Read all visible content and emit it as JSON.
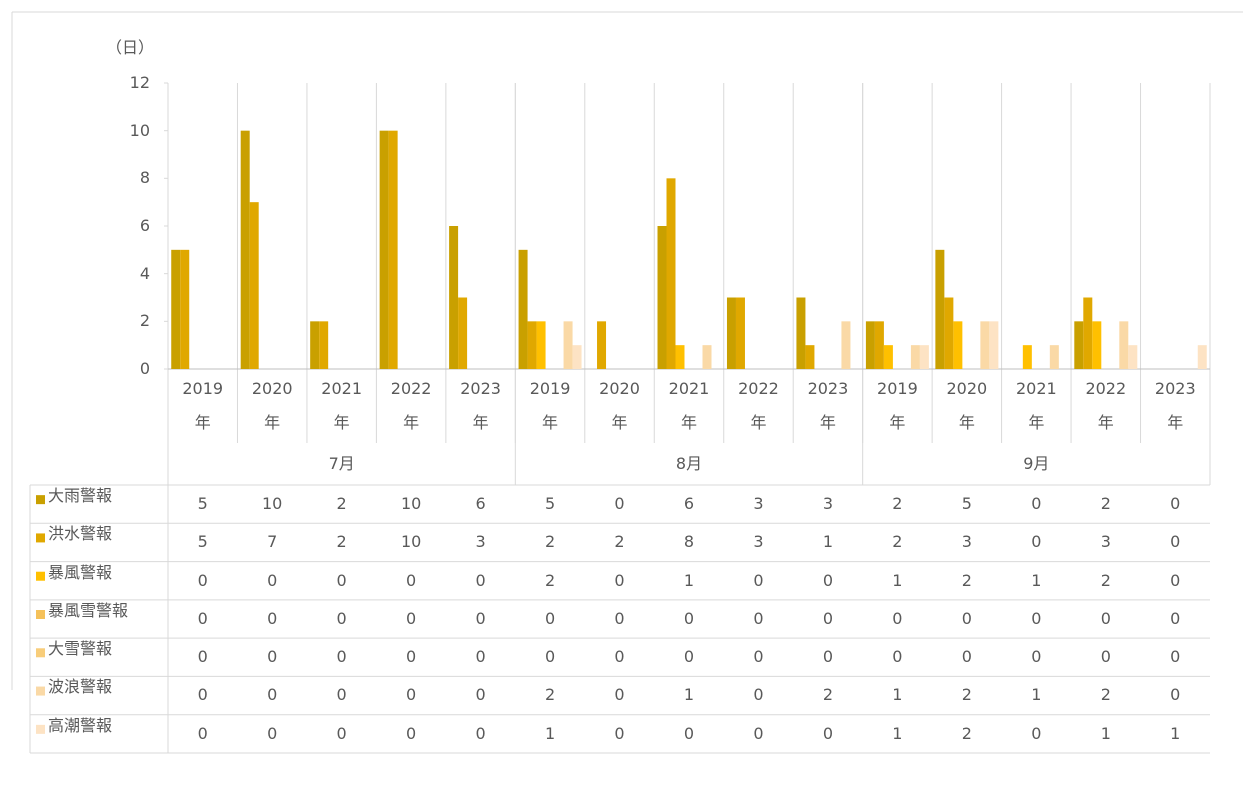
{
  "chart_data": {
    "type": "bar",
    "y_label": "（日）",
    "categories": [
      "2019年",
      "2020年",
      "2021年",
      "2022年",
      "2023年",
      "2019年",
      "2020年",
      "2021年",
      "2022年",
      "2023年",
      "2019年",
      "2020年",
      "2021年",
      "2022年",
      "2023年"
    ],
    "category_groups": [
      "7月",
      "8月",
      "9月"
    ],
    "ylim": [
      0,
      12
    ],
    "yticks": [
      0,
      2,
      4,
      6,
      8,
      10,
      12
    ],
    "series": [
      {
        "name": "大雨警報",
        "color": "#c9a000",
        "values": [
          5,
          10,
          2,
          10,
          6,
          5,
          0,
          6,
          3,
          3,
          2,
          5,
          0,
          2,
          0
        ]
      },
      {
        "name": "洪水警報",
        "color": "#e0a800",
        "values": [
          5,
          7,
          2,
          10,
          3,
          2,
          2,
          8,
          3,
          1,
          2,
          3,
          0,
          3,
          0
        ]
      },
      {
        "name": "暴風警報",
        "color": "#ffc000",
        "values": [
          0,
          0,
          0,
          0,
          0,
          2,
          0,
          1,
          0,
          0,
          1,
          2,
          1,
          2,
          0
        ]
      },
      {
        "name": "暴風雪警報",
        "color": "#f5c15a",
        "values": [
          0,
          0,
          0,
          0,
          0,
          0,
          0,
          0,
          0,
          0,
          0,
          0,
          0,
          0,
          0
        ]
      },
      {
        "name": "大雪警報",
        "color": "#f8cd7a",
        "values": [
          0,
          0,
          0,
          0,
          0,
          0,
          0,
          0,
          0,
          0,
          0,
          0,
          0,
          0,
          0
        ]
      },
      {
        "name": "波浪警報",
        "color": "#fad9a6",
        "values": [
          0,
          0,
          0,
          0,
          0,
          2,
          0,
          1,
          0,
          2,
          1,
          2,
          1,
          2,
          0
        ]
      },
      {
        "name": "高潮警報",
        "color": "#fde3c4",
        "values": [
          0,
          0,
          0,
          0,
          0,
          1,
          0,
          0,
          0,
          0,
          1,
          2,
          0,
          1,
          1
        ]
      }
    ]
  }
}
